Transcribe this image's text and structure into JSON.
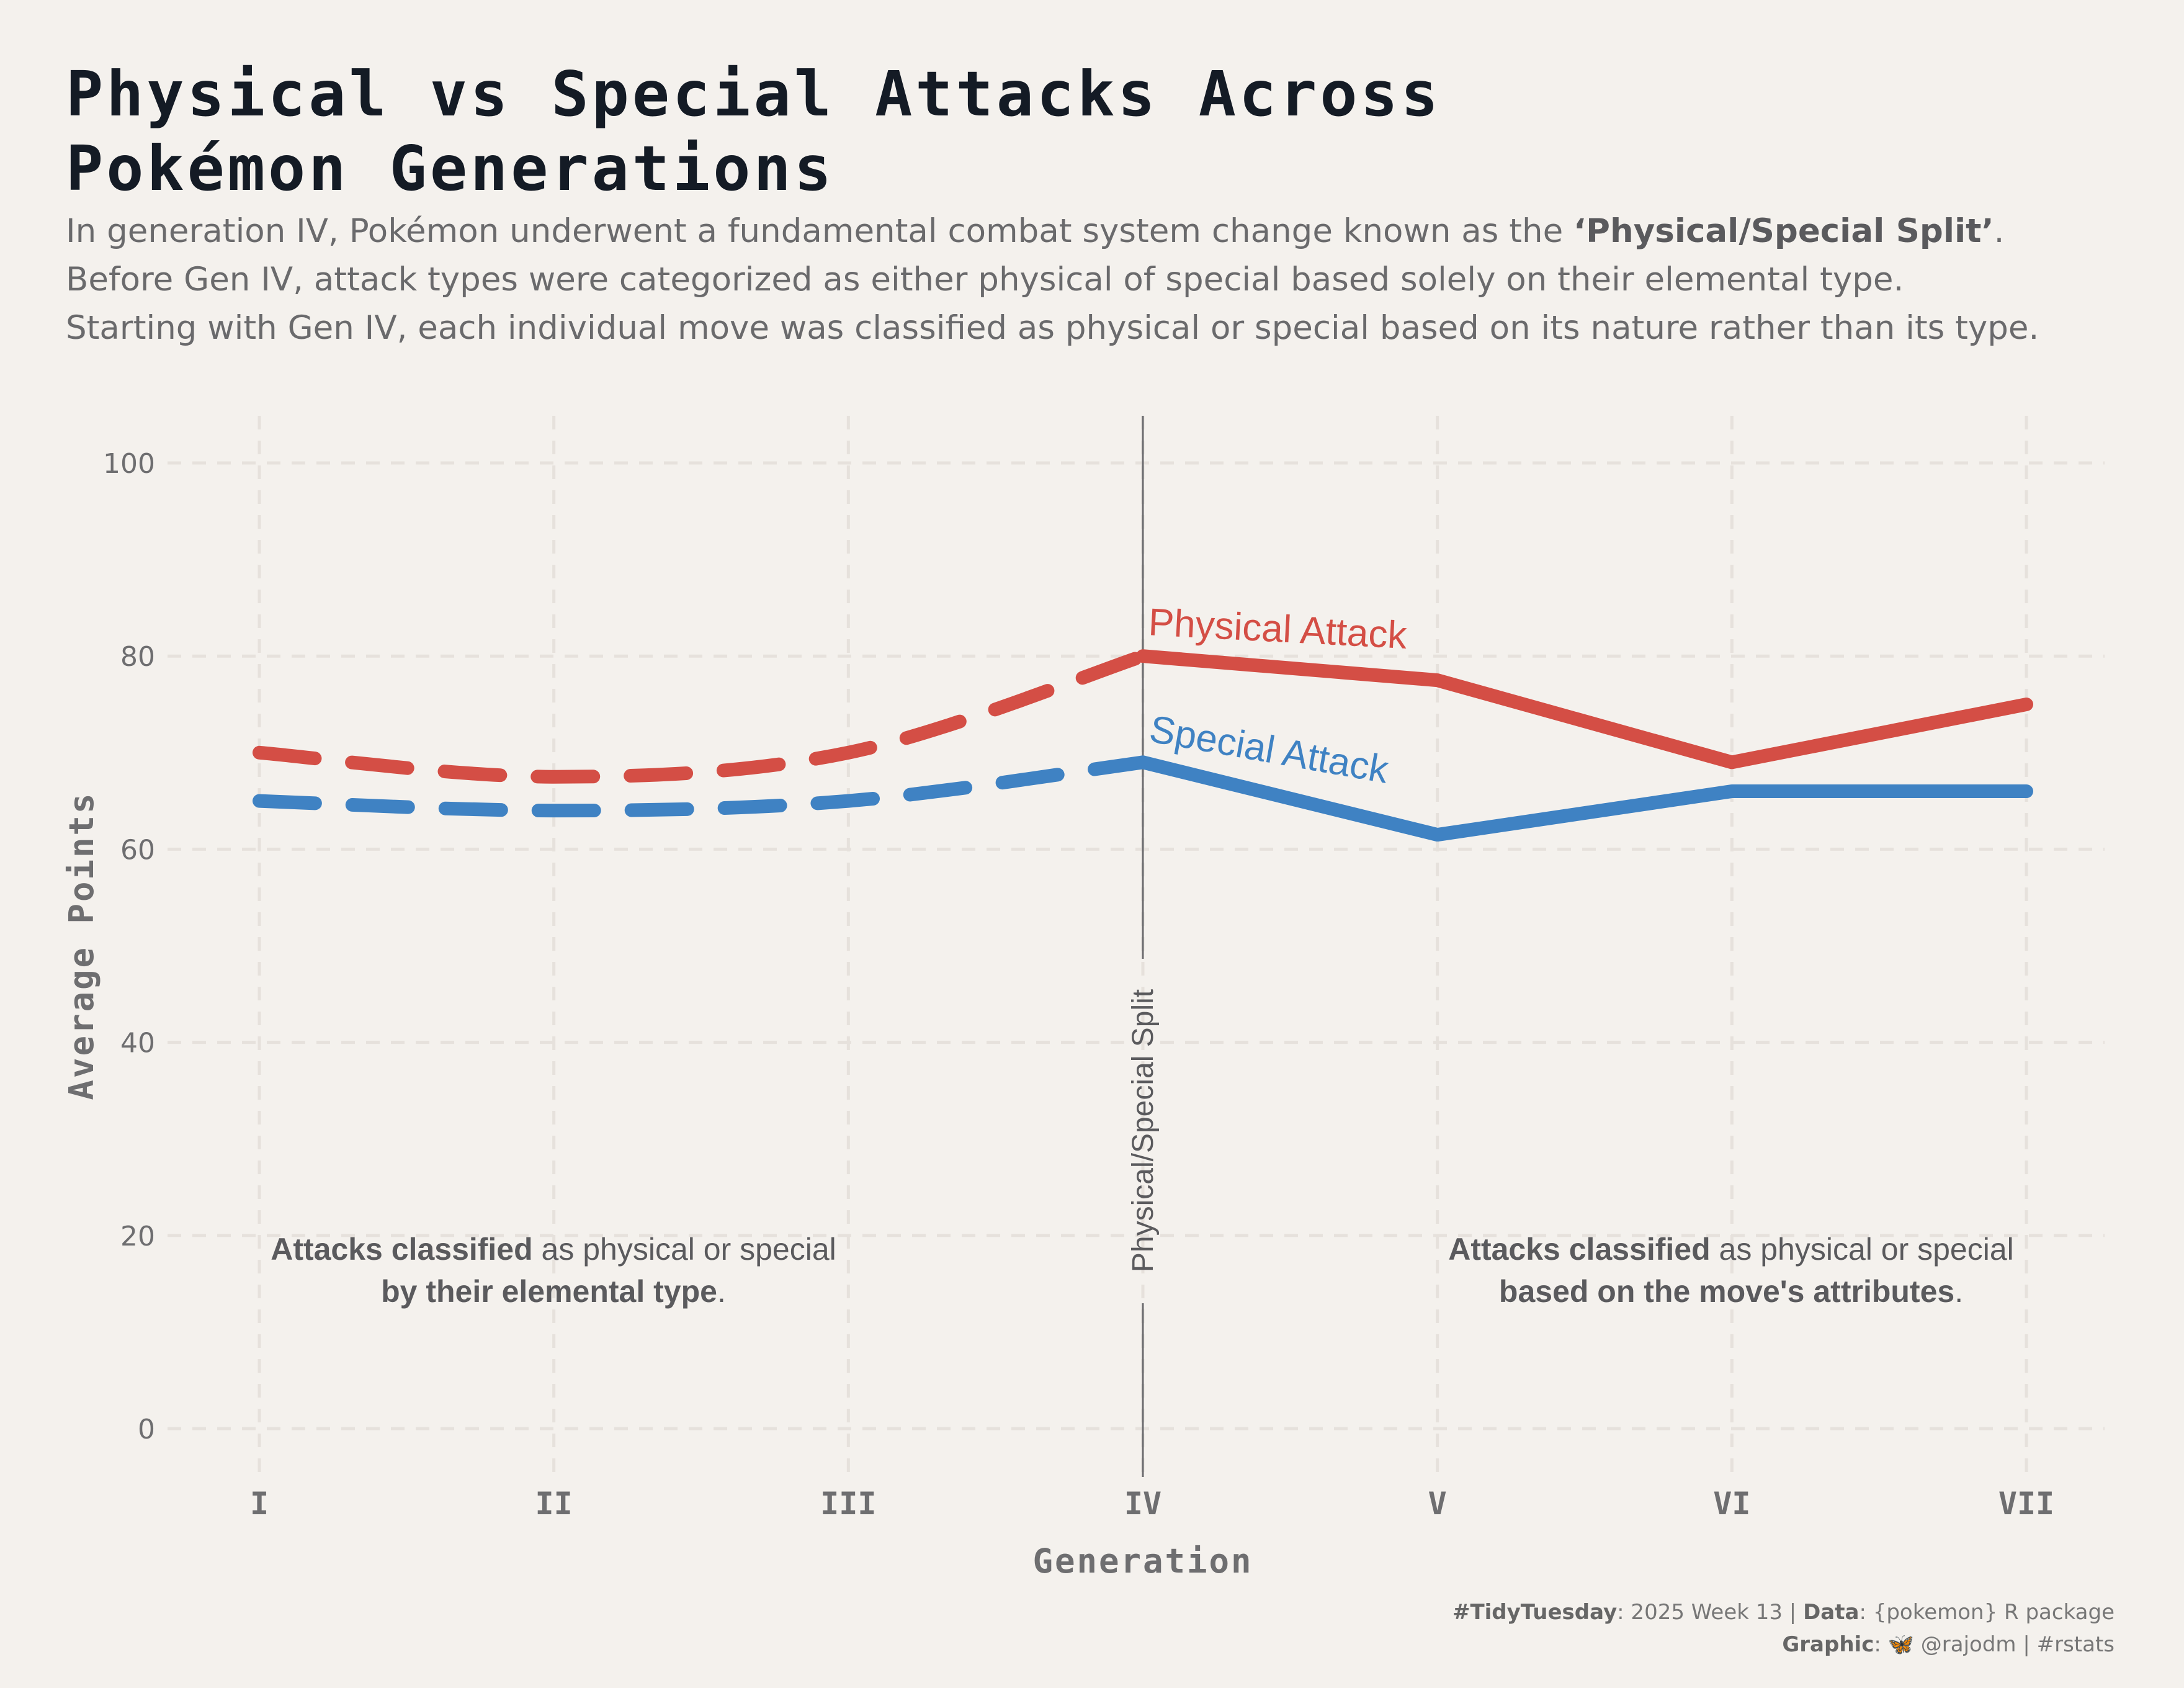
{
  "header": {
    "title_line1": "Physical vs Special Attacks Across",
    "title_line2": "Pokémon Generations",
    "subtitle_line1_pre": "In generation IV, Pokémon underwent a fundamental combat system change known as the ",
    "subtitle_line1_bold": "‘Physical/Special Split’",
    "subtitle_line1_post": ".",
    "subtitle_line2": "Before Gen IV, attack types were categorized as either physical of special based solely on their elemental type.",
    "subtitle_line3": "Starting with Gen IV, each individual move was classified as physical or special based on its nature rather than its type."
  },
  "annotations": {
    "left_line1_bold": "Attacks classified",
    "left_line1_rest": " as physical or special",
    "left_line2_bold": "by their elemental type",
    "left_line2_rest": ".",
    "right_line1_bold": "Attacks classified",
    "right_line1_rest": " as physical or special",
    "right_line2_bold": "based on the move's attributes",
    "right_line2_rest": ".",
    "split_label": "Physical/Special Split"
  },
  "caption": {
    "tag": "#TidyTuesday",
    "tag_rest": ": 2025 Week 13 | ",
    "data_label": "Data",
    "data_rest": ": {pokemon} R package",
    "graphic_label": "Graphic",
    "graphic_rest": ": 🦋 @rajodm | #rstats"
  },
  "chart_data": {
    "type": "line",
    "xlabel": "Generation",
    "ylabel": "Average Points",
    "categories": [
      "I",
      "II",
      "III",
      "IV",
      "V",
      "VI",
      "VII"
    ],
    "ylim": [
      0,
      100
    ],
    "yticks": [
      0,
      20,
      40,
      60,
      80,
      100
    ],
    "grid": true,
    "split_at": "IV",
    "series": [
      {
        "name": "Physical Attack",
        "color": "#d44e45",
        "values": [
          70,
          67.5,
          70,
          80,
          77.5,
          69,
          75
        ]
      },
      {
        "name": "Special Attack",
        "color": "#3f82c3",
        "values": [
          65,
          64,
          65,
          69,
          61.5,
          66,
          66
        ]
      }
    ]
  }
}
